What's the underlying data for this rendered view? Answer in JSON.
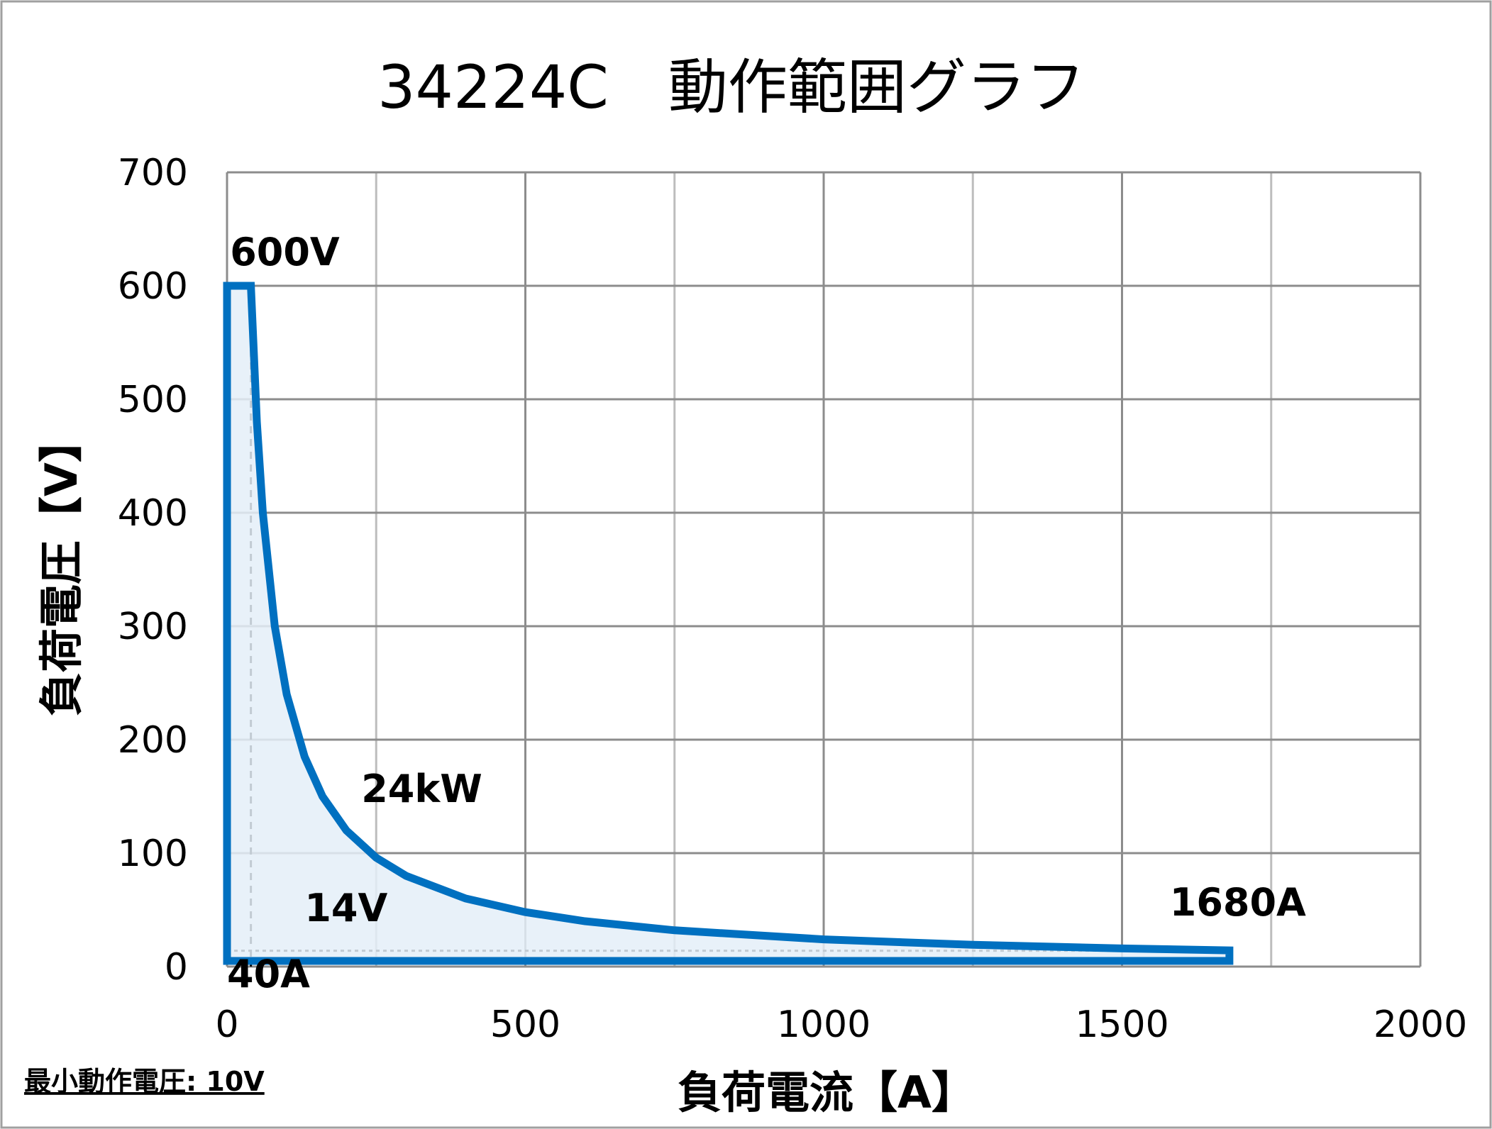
{
  "chart_data": {
    "type": "area",
    "title": "34224C　動作範囲グラフ",
    "xlabel": "負荷電流【A】",
    "ylabel": "負荷電圧【V】",
    "xlim": [
      0,
      2000
    ],
    "ylim": [
      0,
      700
    ],
    "xticks": [
      "0",
      "500",
      "1000",
      "1500",
      "2000"
    ],
    "yticks": [
      "0",
      "100",
      "200",
      "300",
      "400",
      "500",
      "600",
      "700"
    ],
    "grid": true,
    "x_minor_grid_step": 250,
    "series": [
      {
        "color": "#0070C0",
        "fill": "#E4EEF8",
        "points": [
          [
            0,
            600
          ],
          [
            40,
            600
          ],
          [
            50,
            480
          ],
          [
            60,
            400
          ],
          [
            80,
            300
          ],
          [
            100,
            240
          ],
          [
            130,
            185
          ],
          [
            160,
            150
          ],
          [
            200,
            120
          ],
          [
            250,
            96
          ],
          [
            300,
            80
          ],
          [
            400,
            60
          ],
          [
            500,
            48
          ],
          [
            600,
            40
          ],
          [
            750,
            32
          ],
          [
            1000,
            24
          ],
          [
            1250,
            19.2
          ],
          [
            1500,
            16
          ],
          [
            1680,
            14.3
          ],
          [
            1680,
            5
          ],
          [
            0,
            5
          ]
        ]
      }
    ],
    "reference_lines": [
      {
        "axis": "x",
        "value": 40,
        "style": "dashed"
      },
      {
        "axis": "y",
        "value": 14,
        "style": "dotted",
        "to_x": 1680
      }
    ],
    "annotations": [
      {
        "text": "600V",
        "x": 5,
        "y": 618
      },
      {
        "text": "24kW",
        "x": 225,
        "y": 145
      },
      {
        "text": "14V",
        "x": 130,
        "y": 40
      },
      {
        "text": "1680A",
        "x": 1580,
        "y": 45
      },
      {
        "text": "40A",
        "x": 0,
        "y": -18
      }
    ],
    "footnote": "最小動作電圧: 10V"
  }
}
